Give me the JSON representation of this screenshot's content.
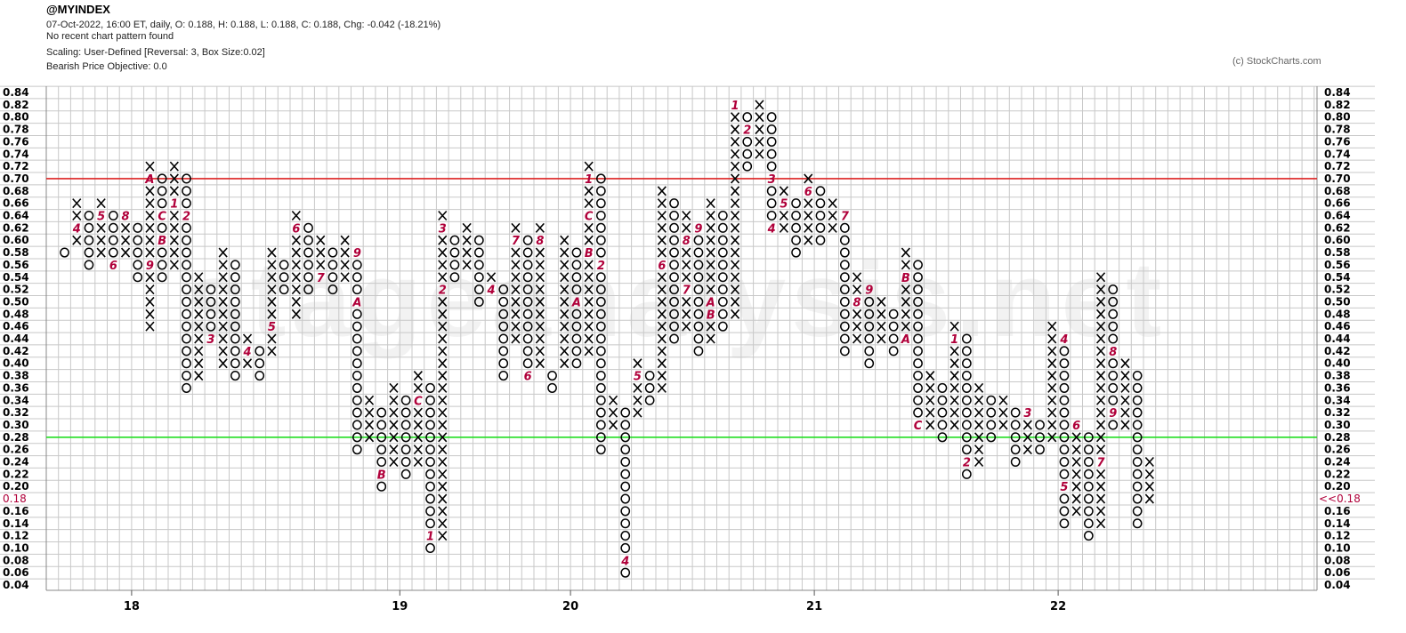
{
  "header": {
    "symbol": "@MYINDEX",
    "quote_line": "07-Oct-2022, 16:00 ET, daily, O: 0.188, H: 0.188, L: 0.188, C: 0.188, Chg: -0.042 (-18.21%)",
    "pattern_line": "No recent chart pattern found",
    "scaling_line": "Scaling: User-Defined [Reversal: 3, Box Size:0.02]",
    "objective_line": "Bearish Price Objective: 0.0",
    "credit": "(c) StockCharts.com"
  },
  "watermark": "stageanalysis.net",
  "chart_data": {
    "type": "point-and-figure",
    "box_size": 0.02,
    "reversal": 3,
    "y_axis": {
      "min": 0.04,
      "max": 0.84,
      "labels": [
        "0.84",
        "0.82",
        "0.80",
        "0.78",
        "0.76",
        "0.74",
        "0.72",
        "0.70",
        "0.68",
        "0.66",
        "0.64",
        "0.62",
        "0.60",
        "0.58",
        "0.56",
        "0.54",
        "0.52",
        "0.50",
        "0.48",
        "0.46",
        "0.44",
        "0.42",
        "0.40",
        "0.38",
        "0.36",
        "0.34",
        "0.32",
        "0.30",
        "0.28",
        "0.26",
        "0.24",
        "0.22",
        "0.20",
        "0.18",
        "0.16",
        "0.14",
        "0.12",
        "0.10",
        "0.08",
        "0.06",
        "0.04"
      ]
    },
    "year_labels": [
      {
        "label": "18",
        "column": 7
      },
      {
        "label": "19",
        "column": 29
      },
      {
        "label": "20",
        "column": 43
      },
      {
        "label": "21",
        "column": 63
      },
      {
        "label": "22",
        "column": 83
      }
    ],
    "current_price": {
      "value": 0.18,
      "label": "0.18",
      "right_label": "<<0.18"
    },
    "horizontal_lines": [
      {
        "value": 0.7,
        "color": "#dd2222"
      },
      {
        "value": 0.29,
        "color": "#22dd22"
      }
    ],
    "colors": {
      "mark": "#000000",
      "month": "#b0003a",
      "grid": "#c8c8c8"
    },
    "columns": [
      {
        "type": "O",
        "high": 0.58,
        "low": 0.58
      },
      {
        "type": "X",
        "high": 0.66,
        "low": 0.6,
        "months": [
          {
            "value": 0.62,
            "label": "4"
          }
        ]
      },
      {
        "type": "O",
        "high": 0.64,
        "low": 0.56
      },
      {
        "type": "X",
        "high": 0.66,
        "low": 0.58,
        "months": [
          {
            "value": 0.64,
            "label": "5"
          }
        ]
      },
      {
        "type": "O",
        "high": 0.64,
        "low": 0.56,
        "months": [
          {
            "value": 0.56,
            "label": "6"
          }
        ]
      },
      {
        "type": "X",
        "high": 0.64,
        "low": 0.58,
        "months": [
          {
            "value": 0.64,
            "label": "8"
          }
        ]
      },
      {
        "type": "O",
        "high": 0.62,
        "low": 0.54
      },
      {
        "type": "X",
        "high": 0.72,
        "low": 0.46,
        "months": [
          {
            "value": 0.56,
            "label": "9"
          },
          {
            "value": 0.7,
            "label": "A"
          }
        ]
      },
      {
        "type": "O",
        "high": 0.7,
        "low": 0.54,
        "months": [
          {
            "value": 0.6,
            "label": "B"
          },
          {
            "value": 0.64,
            "label": "C"
          }
        ]
      },
      {
        "type": "X",
        "high": 0.72,
        "low": 0.56,
        "months": [
          {
            "value": 0.66,
            "label": "1"
          }
        ]
      },
      {
        "type": "O",
        "high": 0.7,
        "low": 0.36,
        "months": [
          {
            "value": 0.64,
            "label": "2"
          }
        ]
      },
      {
        "type": "X",
        "high": 0.54,
        "low": 0.38
      },
      {
        "type": "O",
        "high": 0.52,
        "low": 0.44,
        "months": [
          {
            "value": 0.44,
            "label": "3"
          }
        ]
      },
      {
        "type": "X",
        "high": 0.58,
        "low": 0.4
      },
      {
        "type": "O",
        "high": 0.56,
        "low": 0.38
      },
      {
        "type": "X",
        "high": 0.44,
        "low": 0.4,
        "months": [
          {
            "value": 0.42,
            "label": "4"
          }
        ]
      },
      {
        "type": "O",
        "high": 0.42,
        "low": 0.38
      },
      {
        "type": "X",
        "high": 0.58,
        "low": 0.42,
        "months": [
          {
            "value": 0.46,
            "label": "5"
          }
        ]
      },
      {
        "type": "O",
        "high": 0.56,
        "low": 0.52
      },
      {
        "type": "X",
        "high": 0.64,
        "low": 0.48,
        "months": [
          {
            "value": 0.62,
            "label": "6"
          }
        ]
      },
      {
        "type": "O",
        "high": 0.62,
        "low": 0.52
      },
      {
        "type": "X",
        "high": 0.6,
        "low": 0.54,
        "months": [
          {
            "value": 0.54,
            "label": "7"
          }
        ]
      },
      {
        "type": "O",
        "high": 0.58,
        "low": 0.52
      },
      {
        "type": "X",
        "high": 0.6,
        "low": 0.54,
        "months": [
          {
            "value": 0.52,
            "label": "8"
          }
        ]
      },
      {
        "type": "O",
        "high": 0.58,
        "low": 0.26,
        "months": [
          {
            "value": 0.58,
            "label": "9"
          },
          {
            "value": 0.5,
            "label": "A"
          }
        ]
      },
      {
        "type": "X",
        "high": 0.34,
        "low": 0.28
      },
      {
        "type": "O",
        "high": 0.32,
        "low": 0.2,
        "months": [
          {
            "value": 0.22,
            "label": "B"
          }
        ]
      },
      {
        "type": "X",
        "high": 0.36,
        "low": 0.24
      },
      {
        "type": "O",
        "high": 0.34,
        "low": 0.22
      },
      {
        "type": "X",
        "high": 0.38,
        "low": 0.24,
        "months": [
          {
            "value": 0.34,
            "label": "C"
          }
        ]
      },
      {
        "type": "O",
        "high": 0.36,
        "low": 0.1,
        "months": [
          {
            "value": 0.12,
            "label": "1"
          }
        ]
      },
      {
        "type": "X",
        "high": 0.64,
        "low": 0.12,
        "months": [
          {
            "value": 0.52,
            "label": "2"
          },
          {
            "value": 0.62,
            "label": "3"
          }
        ]
      },
      {
        "type": "O",
        "high": 0.6,
        "low": 0.54
      },
      {
        "type": "X",
        "high": 0.62,
        "low": 0.56
      },
      {
        "type": "O",
        "high": 0.6,
        "low": 0.5
      },
      {
        "type": "X",
        "high": 0.54,
        "low": 0.52,
        "months": [
          {
            "value": 0.52,
            "label": "4"
          }
        ]
      },
      {
        "type": "O",
        "high": 0.52,
        "low": 0.38
      },
      {
        "type": "X",
        "high": 0.62,
        "low": 0.44,
        "months": [
          {
            "value": 0.6,
            "label": "5"
          },
          {
            "value": 0.6,
            "label": "7"
          }
        ]
      },
      {
        "type": "O",
        "high": 0.6,
        "low": 0.38,
        "months": [
          {
            "value": 0.38,
            "label": "6"
          }
        ]
      },
      {
        "type": "X",
        "high": 0.62,
        "low": 0.4,
        "months": [
          {
            "value": 0.6,
            "label": "8"
          }
        ]
      },
      {
        "type": "O",
        "high": 0.38,
        "low": 0.36
      },
      {
        "type": "X",
        "high": 0.6,
        "low": 0.4,
        "months": [
          {
            "value": 0.38,
            "label": "9"
          }
        ]
      },
      {
        "type": "O",
        "high": 0.58,
        "low": 0.4,
        "months": [
          {
            "value": 0.5,
            "label": "A"
          }
        ]
      },
      {
        "type": "X",
        "high": 0.72,
        "low": 0.42,
        "months": [
          {
            "value": 0.58,
            "label": "B"
          },
          {
            "value": 0.64,
            "label": "C"
          },
          {
            "value": 0.7,
            "label": "1"
          }
        ]
      },
      {
        "type": "O",
        "high": 0.7,
        "low": 0.26,
        "months": [
          {
            "value": 0.56,
            "label": "2"
          }
        ]
      },
      {
        "type": "X",
        "high": 0.34,
        "low": 0.3,
        "months": [
          {
            "value": 0.26,
            "label": "3"
          }
        ]
      },
      {
        "type": "O",
        "high": 0.32,
        "low": 0.06,
        "months": [
          {
            "value": 0.08,
            "label": "4"
          }
        ]
      },
      {
        "type": "X",
        "high": 0.4,
        "low": 0.32,
        "months": [
          {
            "value": 0.38,
            "label": "5"
          }
        ]
      },
      {
        "type": "O",
        "high": 0.38,
        "low": 0.34
      },
      {
        "type": "X",
        "high": 0.68,
        "low": 0.36,
        "months": [
          {
            "value": 0.56,
            "label": "6"
          }
        ]
      },
      {
        "type": "O",
        "high": 0.66,
        "low": 0.44
      },
      {
        "type": "X",
        "high": 0.64,
        "low": 0.46,
        "months": [
          {
            "value": 0.52,
            "label": "7"
          },
          {
            "value": 0.6,
            "label": "8"
          }
        ]
      },
      {
        "type": "O",
        "high": 0.62,
        "low": 0.42,
        "months": [
          {
            "value": 0.62,
            "label": "9"
          }
        ]
      },
      {
        "type": "X",
        "high": 0.66,
        "low": 0.44,
        "months": [
          {
            "value": 0.5,
            "label": "A"
          },
          {
            "value": 0.48,
            "label": "B"
          }
        ]
      },
      {
        "type": "O",
        "high": 0.64,
        "low": 0.46
      },
      {
        "type": "X",
        "high": 0.82,
        "low": 0.48,
        "months": [
          {
            "value": 0.82,
            "label": "1"
          }
        ]
      },
      {
        "type": "O",
        "high": 0.8,
        "low": 0.72,
        "months": [
          {
            "value": 0.78,
            "label": "2"
          }
        ]
      },
      {
        "type": "X",
        "high": 0.82,
        "low": 0.74
      },
      {
        "type": "O",
        "high": 0.8,
        "low": 0.62,
        "months": [
          {
            "value": 0.7,
            "label": "3"
          },
          {
            "value": 0.62,
            "label": "4"
          }
        ]
      },
      {
        "type": "X",
        "high": 0.68,
        "low": 0.62,
        "months": [
          {
            "value": 0.66,
            "label": "5"
          }
        ]
      },
      {
        "type": "O",
        "high": 0.66,
        "low": 0.58
      },
      {
        "type": "X",
        "high": 0.7,
        "low": 0.6,
        "months": [
          {
            "value": 0.68,
            "label": "6"
          }
        ]
      },
      {
        "type": "O",
        "high": 0.68,
        "low": 0.6
      },
      {
        "type": "X",
        "high": 0.66,
        "low": 0.62
      },
      {
        "type": "O",
        "high": 0.64,
        "low": 0.42,
        "months": [
          {
            "value": 0.64,
            "label": "7"
          }
        ]
      },
      {
        "type": "X",
        "high": 0.54,
        "low": 0.44,
        "months": [
          {
            "value": 0.5,
            "label": "8"
          }
        ]
      },
      {
        "type": "O",
        "high": 0.52,
        "low": 0.4,
        "months": [
          {
            "value": 0.52,
            "label": "9"
          }
        ]
      },
      {
        "type": "X",
        "high": 0.5,
        "low": 0.44
      },
      {
        "type": "O",
        "high": 0.48,
        "low": 0.42
      },
      {
        "type": "X",
        "high": 0.58,
        "low": 0.44,
        "months": [
          {
            "value": 0.44,
            "label": "A"
          },
          {
            "value": 0.54,
            "label": "B"
          }
        ]
      },
      {
        "type": "O",
        "high": 0.56,
        "low": 0.3,
        "months": [
          {
            "value": 0.3,
            "label": "C"
          }
        ]
      },
      {
        "type": "X",
        "high": 0.38,
        "low": 0.3
      },
      {
        "type": "O",
        "high": 0.36,
        "low": 0.28
      },
      {
        "type": "X",
        "high": 0.46,
        "low": 0.3,
        "months": [
          {
            "value": 0.44,
            "label": "1"
          }
        ]
      },
      {
        "type": "O",
        "high": 0.44,
        "low": 0.22,
        "months": [
          {
            "value": 0.24,
            "label": "2"
          }
        ]
      },
      {
        "type": "X",
        "high": 0.36,
        "low": 0.24
      },
      {
        "type": "O",
        "high": 0.34,
        "low": 0.28
      },
      {
        "type": "X",
        "high": 0.34,
        "low": 0.3
      },
      {
        "type": "O",
        "high": 0.32,
        "low": 0.24
      },
      {
        "type": "X",
        "high": 0.32,
        "low": 0.26,
        "months": [
          {
            "value": 0.32,
            "label": "3"
          }
        ]
      },
      {
        "type": "O",
        "high": 0.3,
        "low": 0.26
      },
      {
        "type": "X",
        "high": 0.46,
        "low": 0.28
      },
      {
        "type": "O",
        "high": 0.44,
        "low": 0.14,
        "months": [
          {
            "value": 0.44,
            "label": "4"
          },
          {
            "value": 0.2,
            "label": "5"
          }
        ]
      },
      {
        "type": "X",
        "high": 0.3,
        "low": 0.16,
        "months": [
          {
            "value": 0.3,
            "label": "6"
          }
        ]
      },
      {
        "type": "O",
        "high": 0.28,
        "low": 0.12
      },
      {
        "type": "X",
        "high": 0.54,
        "low": 0.14,
        "months": [
          {
            "value": 0.24,
            "label": "7"
          }
        ]
      },
      {
        "type": "O",
        "high": 0.52,
        "low": 0.3,
        "months": [
          {
            "value": 0.42,
            "label": "8"
          },
          {
            "value": 0.32,
            "label": "9"
          }
        ]
      },
      {
        "type": "X",
        "high": 0.4,
        "low": 0.3
      },
      {
        "type": "O",
        "high": 0.38,
        "low": 0.14
      },
      {
        "type": "X",
        "high": 0.24,
        "low": 0.18,
        "months": [
          {
            "value": 0.16,
            "label": "A"
          }
        ]
      }
    ]
  }
}
